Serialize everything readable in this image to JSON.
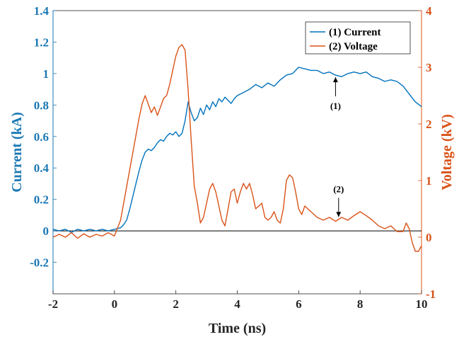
{
  "chart_data": {
    "type": "line",
    "xlabel": "Time (ns)",
    "ylabel_left": "Current (kA)",
    "ylabel_right": "Voltage (kV)",
    "xlim": [
      -2,
      10
    ],
    "ylim_left": [
      -0.4,
      1.4
    ],
    "ylim_right": [
      -1,
      4
    ],
    "x_ticks": [
      "-2",
      "0",
      "2",
      "4",
      "6",
      "8",
      "10"
    ],
    "y_ticks_left": [
      "-0.2",
      "0",
      "0.2",
      "0.4",
      "0.6",
      "0.8",
      "1",
      "1.2",
      "1.4"
    ],
    "y_ticks_right": [
      "-1",
      "0",
      "1",
      "2",
      "3",
      "4"
    ],
    "grid": false,
    "legend_position": "top-right",
    "colors": {
      "current": "#0072bd",
      "voltage": "#d95319",
      "left_axis": "#1a78b5",
      "right_axis": "#d95319"
    },
    "series": [
      {
        "name": "(1) Current",
        "axis": "left",
        "x": [
          -2.0,
          -1.8,
          -1.6,
          -1.4,
          -1.2,
          -1.0,
          -0.8,
          -0.6,
          -0.4,
          -0.2,
          0.0,
          0.2,
          0.3,
          0.4,
          0.5,
          0.6,
          0.7,
          0.8,
          0.9,
          1.0,
          1.1,
          1.2,
          1.3,
          1.4,
          1.5,
          1.6,
          1.7,
          1.8,
          1.9,
          2.0,
          2.1,
          2.2,
          2.3,
          2.4,
          2.5,
          2.6,
          2.7,
          2.8,
          2.9,
          3.0,
          3.1,
          3.2,
          3.3,
          3.4,
          3.5,
          3.6,
          3.7,
          3.8,
          3.9,
          4.0,
          4.2,
          4.4,
          4.6,
          4.8,
          5.0,
          5.2,
          5.4,
          5.6,
          5.8,
          6.0,
          6.2,
          6.4,
          6.6,
          6.8,
          7.0,
          7.2,
          7.4,
          7.6,
          7.8,
          8.0,
          8.2,
          8.4,
          8.6,
          8.8,
          9.0,
          9.2,
          9.4,
          9.6,
          9.8,
          10.0
        ],
        "values": [
          0.01,
          0.0,
          0.01,
          -0.01,
          0.01,
          0.0,
          0.01,
          0.0,
          0.01,
          0.0,
          0.01,
          0.02,
          0.04,
          0.07,
          0.14,
          0.22,
          0.3,
          0.38,
          0.45,
          0.5,
          0.52,
          0.51,
          0.53,
          0.56,
          0.58,
          0.57,
          0.6,
          0.62,
          0.61,
          0.63,
          0.6,
          0.62,
          0.7,
          0.82,
          0.75,
          0.7,
          0.72,
          0.78,
          0.74,
          0.8,
          0.77,
          0.82,
          0.79,
          0.84,
          0.82,
          0.85,
          0.83,
          0.81,
          0.84,
          0.86,
          0.88,
          0.9,
          0.93,
          0.91,
          0.94,
          0.92,
          0.96,
          0.99,
          1.0,
          1.04,
          1.03,
          1.02,
          1.02,
          1.0,
          1.01,
          0.99,
          0.98,
          1.0,
          1.01,
          1.0,
          1.01,
          0.98,
          0.97,
          0.95,
          0.96,
          0.95,
          0.92,
          0.87,
          0.82,
          0.79
        ]
      },
      {
        "name": "(2) Voltage",
        "axis": "right",
        "x": [
          -2.0,
          -1.8,
          -1.6,
          -1.4,
          -1.2,
          -1.0,
          -0.8,
          -0.6,
          -0.4,
          -0.2,
          0.0,
          0.2,
          0.4,
          0.6,
          0.8,
          0.9,
          1.0,
          1.1,
          1.2,
          1.3,
          1.4,
          1.5,
          1.6,
          1.7,
          1.8,
          1.9,
          2.0,
          2.1,
          2.2,
          2.3,
          2.4,
          2.5,
          2.6,
          2.7,
          2.8,
          2.9,
          3.0,
          3.1,
          3.2,
          3.3,
          3.4,
          3.5,
          3.6,
          3.7,
          3.8,
          3.9,
          4.0,
          4.1,
          4.2,
          4.3,
          4.4,
          4.5,
          4.6,
          4.7,
          4.8,
          4.9,
          5.0,
          5.1,
          5.2,
          5.3,
          5.4,
          5.5,
          5.6,
          5.7,
          5.8,
          5.9,
          6.0,
          6.1,
          6.2,
          6.4,
          6.6,
          6.8,
          7.0,
          7.2,
          7.4,
          7.6,
          7.8,
          8.0,
          8.2,
          8.4,
          8.6,
          8.8,
          9.0,
          9.2,
          9.4,
          9.5,
          9.6,
          9.7,
          9.8,
          9.9,
          10.0
        ],
        "values": [
          0.0,
          0.05,
          0.0,
          0.08,
          -0.02,
          0.06,
          0.0,
          0.05,
          0.02,
          0.08,
          0.02,
          0.3,
          0.9,
          1.5,
          2.1,
          2.35,
          2.5,
          2.35,
          2.2,
          2.3,
          2.15,
          2.3,
          2.45,
          2.5,
          2.7,
          2.95,
          3.2,
          3.35,
          3.4,
          3.3,
          2.6,
          1.7,
          0.9,
          0.6,
          0.25,
          0.35,
          0.6,
          0.85,
          0.95,
          0.8,
          0.55,
          0.3,
          0.2,
          0.5,
          0.8,
          0.85,
          0.6,
          0.8,
          0.95,
          0.85,
          0.95,
          0.75,
          0.5,
          0.55,
          0.6,
          0.35,
          0.3,
          0.35,
          0.45,
          0.3,
          0.25,
          0.5,
          1.0,
          1.1,
          1.05,
          0.8,
          0.5,
          0.4,
          0.55,
          0.45,
          0.35,
          0.3,
          0.35,
          0.28,
          0.35,
          0.3,
          0.38,
          0.45,
          0.38,
          0.3,
          0.2,
          0.15,
          0.2,
          0.1,
          0.1,
          0.25,
          0.15,
          -0.1,
          -0.25,
          -0.25,
          -0.15
        ]
      }
    ],
    "annotations": [
      {
        "text": "(1)",
        "series": "(1) Current",
        "x": 7.2,
        "y": 0.99
      },
      {
        "text": "(2)",
        "series": "(2) Voltage",
        "x": 7.3,
        "y": 0.32
      }
    ]
  }
}
